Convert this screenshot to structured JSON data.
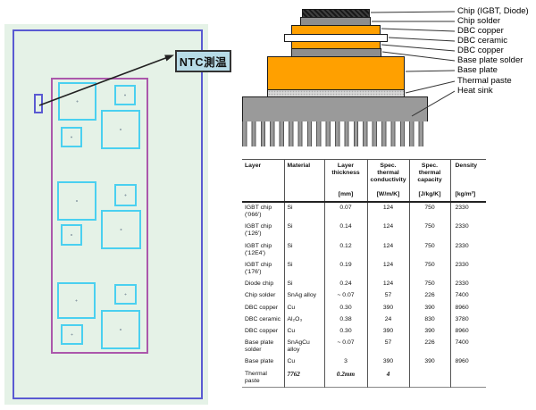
{
  "left_panel": {
    "ntc_label": "NTC測温"
  },
  "stack": {
    "labels": [
      "Chip (IGBT, Diode)",
      "Chip solder",
      "DBC copper",
      "DBC ceramic",
      "DBC copper",
      "Base plate solder",
      "Base plate",
      "Thermal paste",
      "Heat sink"
    ]
  },
  "table": {
    "headers": [
      {
        "title": "Layer",
        "unit": ""
      },
      {
        "title": "Material",
        "unit": ""
      },
      {
        "title": "Layer thickness",
        "unit": "[mm]"
      },
      {
        "title": "Spec. thermal conductivity",
        "unit": "[W/m/K]"
      },
      {
        "title": "Spec. thermal capacity",
        "unit": "[J/kg/K]"
      },
      {
        "title": "Density",
        "unit": "[kg/m³]"
      }
    ],
    "rows": [
      {
        "cells": [
          "IGBT chip ('066')",
          "Si",
          "0.07",
          "124",
          "750",
          "2330"
        ]
      },
      {
        "cells": [
          "IGBT chip ('126')",
          "Si",
          "0.14",
          "124",
          "750",
          "2330"
        ]
      },
      {
        "cells": [
          "IGBT chip ('12E4')",
          "Si",
          "0.12",
          "124",
          "750",
          "2330"
        ]
      },
      {
        "cells": [
          "IGBT chip ('176')",
          "Si",
          "0.19",
          "124",
          "750",
          "2330"
        ]
      },
      {
        "cells": [
          "Diode chip",
          "Si",
          "0.24",
          "124",
          "750",
          "2330"
        ]
      },
      {
        "cells": [
          "Chip solder",
          "SnAg alloy",
          "~ 0.07",
          "57",
          "226",
          "7400"
        ]
      },
      {
        "cells": [
          "DBC copper",
          "Cu",
          "0.30",
          "390",
          "390",
          "8960"
        ]
      },
      {
        "cells": [
          "DBC ceramic",
          "Al₂O₃",
          "0.38",
          "24",
          "830",
          "3780"
        ]
      },
      {
        "cells": [
          "DBC copper",
          "Cu",
          "0.30",
          "390",
          "390",
          "8960"
        ]
      },
      {
        "cells": [
          "Base plate solder",
          "SnAgCu alloy",
          "~ 0.07",
          "57",
          "226",
          "7400"
        ]
      },
      {
        "cells": [
          "Base plate",
          "Cu",
          "3",
          "390",
          "390",
          "8960"
        ]
      },
      {
        "cells": [
          "Thermal paste",
          "7762",
          "0.2mm",
          "4",
          "",
          ""
        ],
        "emphasis": true
      }
    ]
  },
  "colors": {
    "copper_orange": "#ffa000",
    "solder_gray": "#8e8e8e",
    "paste_gray": "#d6d6d6",
    "heatsink_gray": "#9a9a9a",
    "diagram_green": "#e5f2e7",
    "outline_blue": "#5a5ad2",
    "outline_purple": "#ab58ab",
    "chip_cyan": "#4ad0f0",
    "ntc_label_bg": "#b7dbe7"
  }
}
